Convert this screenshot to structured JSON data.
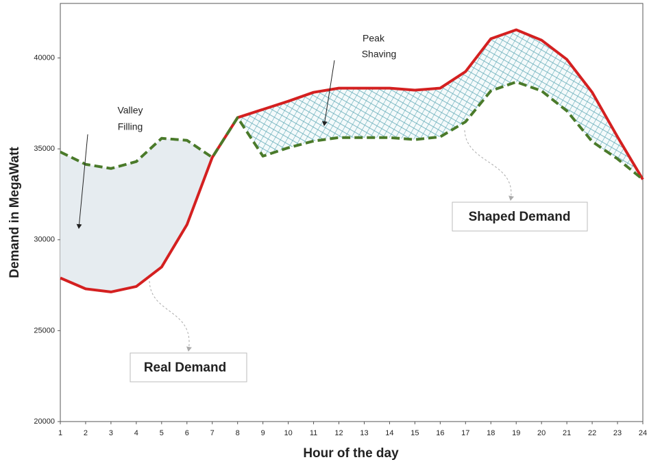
{
  "chart_data": {
    "type": "area-line",
    "x": [
      1,
      2,
      3,
      4,
      5,
      6,
      7,
      8,
      9,
      10,
      11,
      12,
      13,
      14,
      15,
      16,
      17,
      18,
      19,
      20,
      21,
      22,
      23,
      24
    ],
    "series": [
      {
        "name": "Real Demand",
        "color": "#d42020",
        "dash": false,
        "values": [
          27900,
          27300,
          27130,
          27430,
          28500,
          30830,
          34530,
          36720,
          37170,
          37620,
          38110,
          38340,
          38340,
          38340,
          38230,
          38340,
          39250,
          41060,
          41550,
          40980,
          39920,
          38110,
          35660,
          33320
        ]
      },
      {
        "name": "Shaped Demand",
        "color": "#4a7a2a",
        "dash": true,
        "values": [
          34830,
          34150,
          33920,
          34300,
          35580,
          35470,
          34530,
          36720,
          34600,
          35060,
          35430,
          35620,
          35620,
          35620,
          35510,
          35660,
          36490,
          38190,
          38680,
          38190,
          37090,
          35400,
          34450,
          33320
        ]
      }
    ],
    "xlim": [
      1,
      24
    ],
    "xticks": [
      1,
      2,
      3,
      4,
      5,
      6,
      7,
      8,
      9,
      10,
      11,
      12,
      13,
      14,
      15,
      16,
      17,
      18,
      19,
      20,
      21,
      22,
      23,
      24
    ],
    "ylim": [
      20000,
      43000
    ],
    "yticks": [
      20000,
      25000,
      30000,
      35000,
      40000
    ],
    "x_label": "Hour of the day",
    "y_label": "Demand in MegaWatt",
    "annotations": [
      {
        "lines": [
          "Valley",
          "Filling"
        ]
      },
      {
        "lines": [
          "Peak",
          "Shaving"
        ]
      }
    ]
  }
}
